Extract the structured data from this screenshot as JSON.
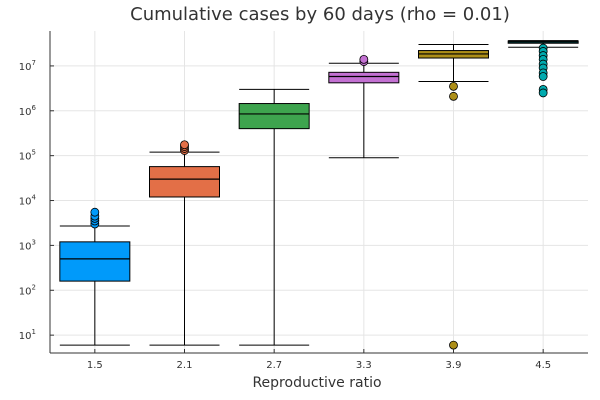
{
  "chart_data": {
    "type": "box",
    "title": "Cumulative cases by 60 days (rho = 0.01)",
    "xlabel": "Reproductive ratio",
    "ylabel": "",
    "y_scale": "log10",
    "ylim": [
      4,
      60000000
    ],
    "grid": true,
    "legend": false,
    "categories": [
      "1.5",
      "2.1",
      "2.7",
      "3.3",
      "3.9",
      "4.5"
    ],
    "y_ticks": [
      {
        "value": 10,
        "base": "10",
        "exp": "1"
      },
      {
        "value": 100,
        "base": "10",
        "exp": "2"
      },
      {
        "value": 1000,
        "base": "10",
        "exp": "3"
      },
      {
        "value": 10000,
        "base": "10",
        "exp": "4"
      },
      {
        "value": 100000,
        "base": "10",
        "exp": "5"
      },
      {
        "value": 1000000,
        "base": "10",
        "exp": "6"
      },
      {
        "value": 10000000,
        "base": "10",
        "exp": "7"
      }
    ],
    "boxes": [
      {
        "category": "1.5",
        "color": "#009AFA",
        "whisker_low": 6,
        "q1": 160,
        "median": 500,
        "q3": 1200,
        "whisker_high": 2700,
        "outliers": [
          3000,
          3500,
          4000,
          4500,
          5500
        ]
      },
      {
        "category": "2.1",
        "color": "#E36F47",
        "whisker_low": 6,
        "q1": 12000,
        "median": 30000,
        "q3": 57000,
        "whisker_high": 120000,
        "outliers": [
          130000,
          145000,
          160000,
          175000
        ]
      },
      {
        "category": "2.7",
        "color": "#3EA44E",
        "whisker_low": 6,
        "q1": 400000,
        "median": 850000,
        "q3": 1450000,
        "whisker_high": 3000000,
        "outliers": []
      },
      {
        "category": "3.3",
        "color": "#C371D2",
        "whisker_low": 90000,
        "q1": 4200000,
        "median": 5800000,
        "q3": 7200000,
        "whisker_high": 11500000,
        "outliers": [
          12500000,
          14000000
        ]
      },
      {
        "category": "3.9",
        "color": "#AC8E18",
        "whisker_low": 4500000,
        "q1": 15000000,
        "median": 18500000,
        "q3": 22000000,
        "whisker_high": 30000000,
        "outliers": [
          3500000,
          2100000,
          6
        ]
      },
      {
        "category": "4.5",
        "color": "#00AAAE",
        "whisker_low": 26000000,
        "q1": 32000000,
        "median": 34000000,
        "q3": 36000000,
        "whisker_high": 36500000,
        "outliers": [
          25000000,
          21000000,
          17000000,
          14000000,
          11000000,
          9000000,
          7000000,
          5800000,
          3000000,
          2500000
        ]
      }
    ]
  }
}
